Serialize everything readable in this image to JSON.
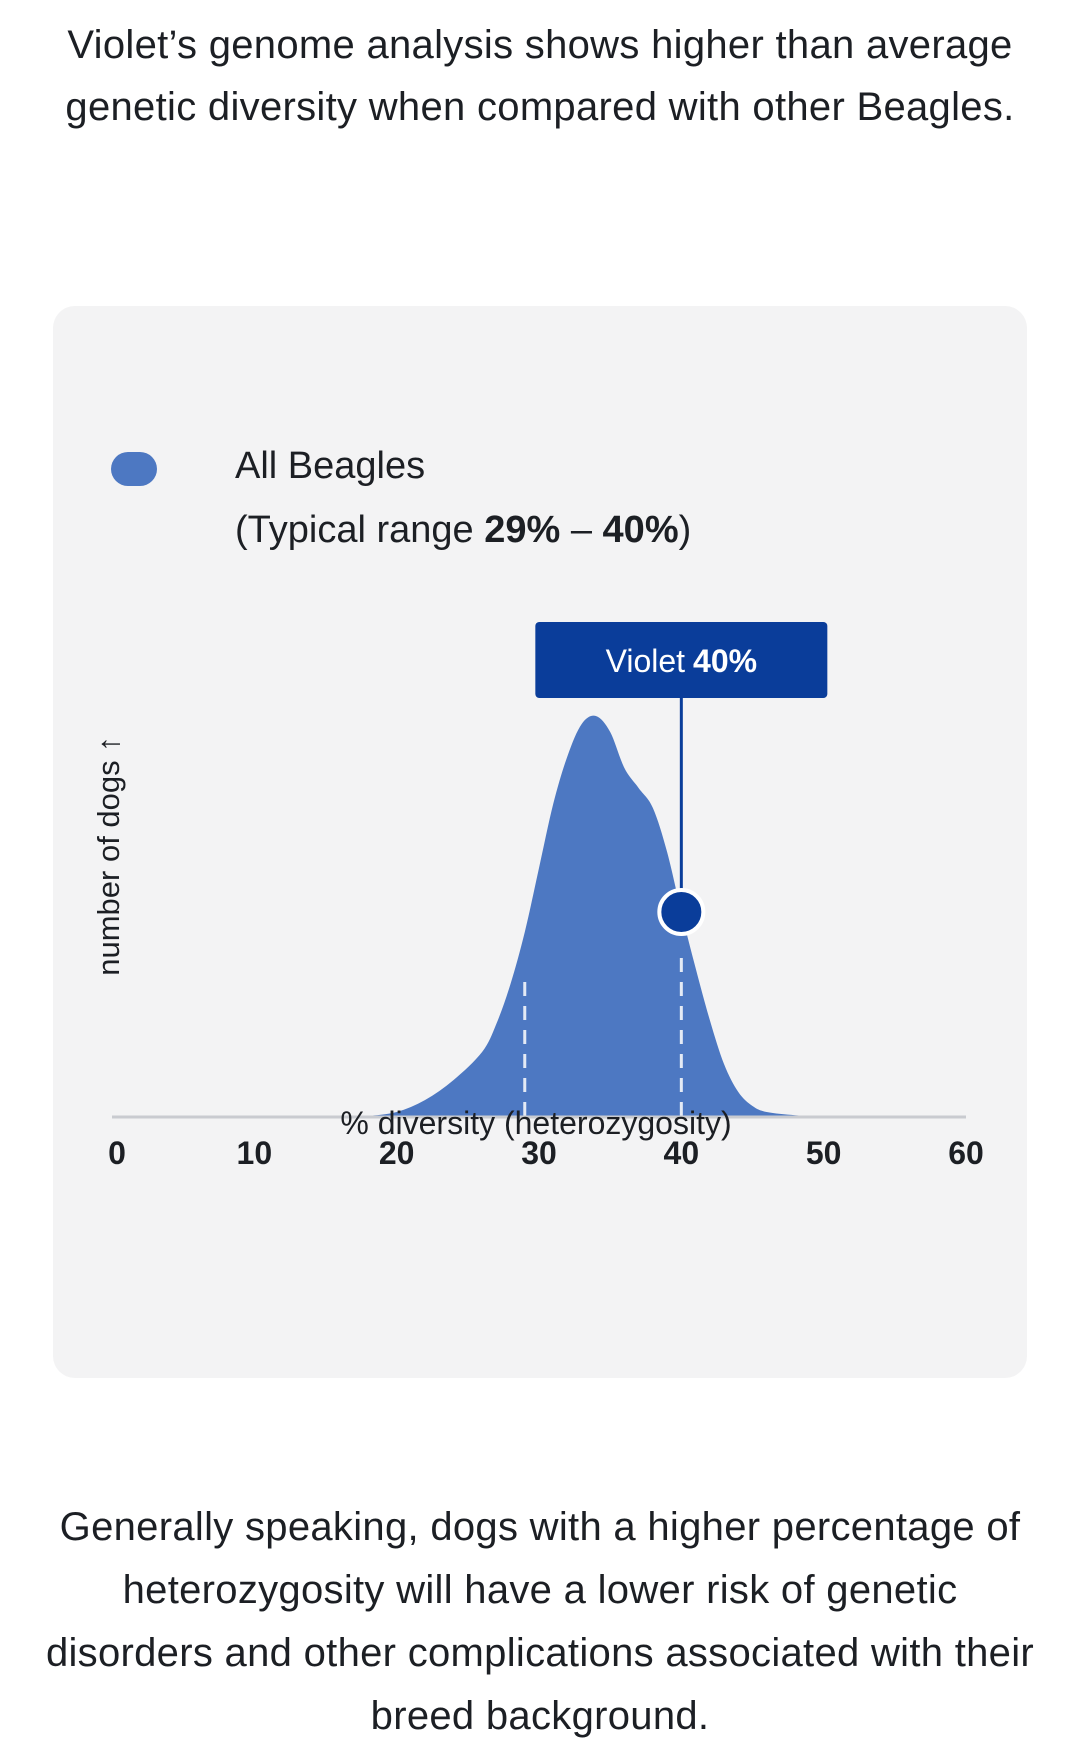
{
  "intro_text": "Violet’s genome analysis shows higher than average genetic diversity when compared with other Beagles.",
  "outro_text": "Generally speaking, dogs with a higher percentage of heterozygosity will have a lower risk of genetic disorders and other complications associated with their breed background.",
  "colors": {
    "distribution_fill": "#4d78c2",
    "marker": "#0a3d9a",
    "card_background": "#f3f3f4",
    "axis_line": "#c9cbd0"
  },
  "chart_data": {
    "type": "area",
    "title": "",
    "xlabel": "% diversity (heterozygosity)",
    "ylabel": "number of dogs ↑",
    "xlim": [
      0,
      60
    ],
    "x_ticks": [
      "0",
      "10",
      "20",
      "30",
      "40",
      "50",
      "60"
    ],
    "legend": {
      "label": "All Beagles",
      "range_prefix": "(Typical range ",
      "range_low": "29%",
      "range_separator": " – ",
      "range_high": "40%",
      "range_suffix": ")",
      "placement": "top-left"
    },
    "series": [
      {
        "name": "All Beagles",
        "x": [
          18,
          20,
          22,
          24,
          26,
          27,
          28,
          29,
          30,
          31,
          32,
          33,
          34,
          35,
          36,
          37,
          38,
          39,
          40,
          41,
          42,
          43,
          44,
          45,
          46,
          48,
          50
        ],
        "y": [
          0,
          0.01,
          0.04,
          0.09,
          0.16,
          0.23,
          0.33,
          0.46,
          0.62,
          0.78,
          0.9,
          0.98,
          1.0,
          0.96,
          0.87,
          0.82,
          0.77,
          0.66,
          0.51,
          0.37,
          0.24,
          0.13,
          0.06,
          0.025,
          0.01,
          0.002,
          0
        ]
      }
    ],
    "typical_range": [
      29,
      40
    ],
    "highlight": {
      "name": "Violet",
      "value_label": "40%",
      "x": 40,
      "y": 0.51
    }
  }
}
